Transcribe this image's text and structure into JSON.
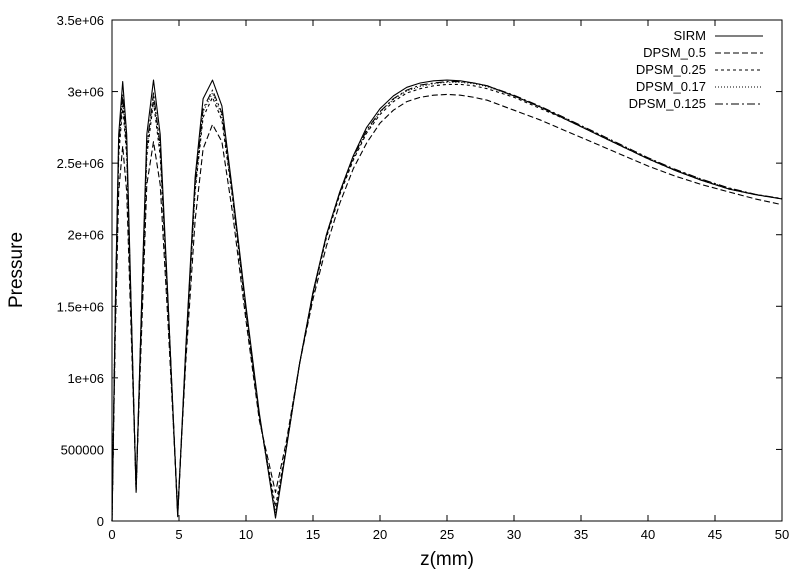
{
  "chart_data": {
    "type": "line",
    "title": "",
    "xlabel": "z(mm)",
    "ylabel": "Pressure",
    "xlim": [
      0,
      50
    ],
    "ylim": [
      0,
      3500000
    ],
    "xticks": [
      0,
      5,
      10,
      15,
      20,
      25,
      30,
      35,
      40,
      45,
      50
    ],
    "xtick_labels": [
      "0",
      "5",
      "10",
      "15",
      "20",
      "25",
      "30",
      "35",
      "40",
      "45",
      "50"
    ],
    "yticks": [
      0,
      500000,
      1000000,
      1500000,
      2000000,
      2500000,
      3000000,
      3500000
    ],
    "ytick_labels": [
      "0",
      "500000",
      "1e+06",
      "1.5e+06",
      "2e+06",
      "2.5e+06",
      "3e+06",
      "3.5e+06"
    ],
    "grid": false,
    "legend": "top-right",
    "series": [
      {
        "name": "SIRM",
        "dash": "",
        "color": "#000000",
        "points": [
          [
            0,
            0
          ],
          [
            0.25,
            1500000
          ],
          [
            0.5,
            2700000
          ],
          [
            0.8,
            3070000
          ],
          [
            1.1,
            2700000
          ],
          [
            1.4,
            1600000
          ],
          [
            1.8,
            200000
          ],
          [
            2.2,
            1500000
          ],
          [
            2.6,
            2700000
          ],
          [
            3.1,
            3080000
          ],
          [
            3.6,
            2700000
          ],
          [
            4.2,
            1500000
          ],
          [
            4.9,
            30000
          ],
          [
            5.5,
            1200000
          ],
          [
            6.2,
            2400000
          ],
          [
            6.8,
            2950000
          ],
          [
            7.5,
            3080000
          ],
          [
            8.2,
            2900000
          ],
          [
            9.0,
            2300000
          ],
          [
            10.0,
            1500000
          ],
          [
            11.0,
            750000
          ],
          [
            12.2,
            20000
          ],
          [
            13.0,
            500000
          ],
          [
            14.0,
            1100000
          ],
          [
            15.0,
            1600000
          ],
          [
            16.0,
            2000000
          ],
          [
            17.0,
            2300000
          ],
          [
            18.0,
            2550000
          ],
          [
            19.0,
            2750000
          ],
          [
            20.0,
            2880000
          ],
          [
            21.0,
            2970000
          ],
          [
            22.0,
            3030000
          ],
          [
            23.0,
            3060000
          ],
          [
            24.0,
            3075000
          ],
          [
            25.0,
            3080000
          ],
          [
            26.0,
            3075000
          ],
          [
            27.0,
            3060000
          ],
          [
            28.0,
            3040000
          ],
          [
            30.0,
            2970000
          ],
          [
            32.0,
            2890000
          ],
          [
            34.0,
            2800000
          ],
          [
            36.0,
            2710000
          ],
          [
            38.0,
            2620000
          ],
          [
            40.0,
            2530000
          ],
          [
            42.0,
            2450000
          ],
          [
            44.0,
            2380000
          ],
          [
            46.0,
            2320000
          ],
          [
            48.0,
            2280000
          ],
          [
            50.0,
            2250000
          ]
        ]
      },
      {
        "name": "DPSM_0.5",
        "dash": "6,3",
        "color": "#000000",
        "points": [
          [
            0,
            0
          ],
          [
            0.25,
            1300000
          ],
          [
            0.5,
            2300000
          ],
          [
            0.8,
            2620000
          ],
          [
            1.1,
            2300000
          ],
          [
            1.4,
            1400000
          ],
          [
            1.8,
            250000
          ],
          [
            2.2,
            1300000
          ],
          [
            2.6,
            2350000
          ],
          [
            3.1,
            2650000
          ],
          [
            3.6,
            2350000
          ],
          [
            4.2,
            1350000
          ],
          [
            4.9,
            80000
          ],
          [
            5.5,
            1100000
          ],
          [
            6.2,
            2100000
          ],
          [
            6.8,
            2600000
          ],
          [
            7.5,
            2770000
          ],
          [
            8.2,
            2650000
          ],
          [
            9.0,
            2150000
          ],
          [
            10.0,
            1400000
          ],
          [
            11.0,
            700000
          ],
          [
            12.2,
            200000
          ],
          [
            13.0,
            550000
          ],
          [
            14.0,
            1100000
          ],
          [
            15.0,
            1550000
          ],
          [
            16.0,
            1920000
          ],
          [
            17.0,
            2220000
          ],
          [
            18.0,
            2460000
          ],
          [
            19.0,
            2640000
          ],
          [
            20.0,
            2780000
          ],
          [
            21.0,
            2870000
          ],
          [
            22.0,
            2930000
          ],
          [
            23.0,
            2960000
          ],
          [
            24.0,
            2975000
          ],
          [
            25.0,
            2980000
          ],
          [
            26.0,
            2975000
          ],
          [
            27.0,
            2960000
          ],
          [
            28.0,
            2940000
          ],
          [
            30.0,
            2870000
          ],
          [
            32.0,
            2800000
          ],
          [
            34.0,
            2720000
          ],
          [
            36.0,
            2640000
          ],
          [
            38.0,
            2560000
          ],
          [
            40.0,
            2480000
          ],
          [
            42.0,
            2410000
          ],
          [
            44.0,
            2350000
          ],
          [
            46.0,
            2300000
          ],
          [
            48.0,
            2250000
          ],
          [
            50.0,
            2210000
          ]
        ]
      },
      {
        "name": "DPSM_0.25",
        "dash": "3,3",
        "color": "#000000",
        "points": [
          [
            0,
            0
          ],
          [
            0.25,
            1400000
          ],
          [
            0.5,
            2550000
          ],
          [
            0.8,
            2900000
          ],
          [
            1.1,
            2550000
          ],
          [
            1.4,
            1500000
          ],
          [
            1.8,
            220000
          ],
          [
            2.2,
            1400000
          ],
          [
            2.6,
            2550000
          ],
          [
            3.1,
            2930000
          ],
          [
            3.6,
            2550000
          ],
          [
            4.2,
            1450000
          ],
          [
            4.9,
            50000
          ],
          [
            5.5,
            1150000
          ],
          [
            6.2,
            2300000
          ],
          [
            6.8,
            2820000
          ],
          [
            7.5,
            2960000
          ],
          [
            8.2,
            2800000
          ],
          [
            9.0,
            2250000
          ],
          [
            10.0,
            1450000
          ],
          [
            11.0,
            720000
          ],
          [
            12.2,
            100000
          ],
          [
            13.0,
            520000
          ],
          [
            14.0,
            1100000
          ],
          [
            15.0,
            1580000
          ],
          [
            16.0,
            1980000
          ],
          [
            17.0,
            2280000
          ],
          [
            18.0,
            2520000
          ],
          [
            19.0,
            2710000
          ],
          [
            20.0,
            2840000
          ],
          [
            21.0,
            2930000
          ],
          [
            22.0,
            2990000
          ],
          [
            23.0,
            3020000
          ],
          [
            24.0,
            3040000
          ],
          [
            25.0,
            3050000
          ],
          [
            26.0,
            3050000
          ],
          [
            27.0,
            3040000
          ],
          [
            28.0,
            3020000
          ],
          [
            30.0,
            2960000
          ],
          [
            32.0,
            2880000
          ],
          [
            34.0,
            2800000
          ],
          [
            36.0,
            2710000
          ],
          [
            38.0,
            2620000
          ],
          [
            40.0,
            2530000
          ],
          [
            42.0,
            2450000
          ],
          [
            44.0,
            2380000
          ],
          [
            46.0,
            2320000
          ],
          [
            48.0,
            2280000
          ],
          [
            50.0,
            2250000
          ]
        ]
      },
      {
        "name": "DPSM_0.17",
        "dash": "1,2",
        "color": "#000000",
        "points": [
          [
            0,
            0
          ],
          [
            0.25,
            1450000
          ],
          [
            0.5,
            2600000
          ],
          [
            0.8,
            2950000
          ],
          [
            1.1,
            2600000
          ],
          [
            1.4,
            1550000
          ],
          [
            1.8,
            210000
          ],
          [
            2.2,
            1450000
          ],
          [
            2.6,
            2600000
          ],
          [
            3.1,
            2970000
          ],
          [
            3.6,
            2600000
          ],
          [
            4.2,
            1480000
          ],
          [
            4.9,
            40000
          ],
          [
            5.5,
            1170000
          ],
          [
            6.2,
            2330000
          ],
          [
            6.8,
            2860000
          ],
          [
            7.5,
            2990000
          ],
          [
            8.2,
            2830000
          ],
          [
            9.0,
            2270000
          ],
          [
            10.0,
            1470000
          ],
          [
            11.0,
            730000
          ],
          [
            12.2,
            60000
          ],
          [
            13.0,
            510000
          ],
          [
            14.0,
            1100000
          ],
          [
            15.0,
            1590000
          ],
          [
            16.0,
            1990000
          ],
          [
            17.0,
            2290000
          ],
          [
            18.0,
            2530000
          ],
          [
            19.0,
            2720000
          ],
          [
            20.0,
            2855000
          ],
          [
            21.0,
            2945000
          ],
          [
            22.0,
            3005000
          ],
          [
            23.0,
            3035000
          ],
          [
            24.0,
            3055000
          ],
          [
            25.0,
            3065000
          ],
          [
            26.0,
            3065000
          ],
          [
            27.0,
            3055000
          ],
          [
            28.0,
            3035000
          ],
          [
            30.0,
            2970000
          ],
          [
            32.0,
            2890000
          ],
          [
            34.0,
            2805000
          ],
          [
            36.0,
            2715000
          ],
          [
            38.0,
            2625000
          ],
          [
            40.0,
            2535000
          ],
          [
            42.0,
            2455000
          ],
          [
            44.0,
            2385000
          ],
          [
            46.0,
            2325000
          ],
          [
            48.0,
            2280000
          ],
          [
            50.0,
            2250000
          ]
        ]
      },
      {
        "name": "DPSM_0.125",
        "dash": "8,3,2,3",
        "color": "#000000",
        "points": [
          [
            0,
            0
          ],
          [
            0.25,
            1480000
          ],
          [
            0.5,
            2620000
          ],
          [
            0.8,
            2980000
          ],
          [
            1.1,
            2620000
          ],
          [
            1.4,
            1570000
          ],
          [
            1.8,
            205000
          ],
          [
            2.2,
            1470000
          ],
          [
            2.6,
            2620000
          ],
          [
            3.1,
            2990000
          ],
          [
            3.6,
            2620000
          ],
          [
            4.2,
            1490000
          ],
          [
            4.9,
            35000
          ],
          [
            5.5,
            1180000
          ],
          [
            6.2,
            2350000
          ],
          [
            6.8,
            2880000
          ],
          [
            7.5,
            3010000
          ],
          [
            8.2,
            2850000
          ],
          [
            9.0,
            2280000
          ],
          [
            10.0,
            1480000
          ],
          [
            11.0,
            735000
          ],
          [
            12.2,
            40000
          ],
          [
            13.0,
            505000
          ],
          [
            14.0,
            1100000
          ],
          [
            15.0,
            1595000
          ],
          [
            16.0,
            1995000
          ],
          [
            17.0,
            2295000
          ],
          [
            18.0,
            2540000
          ],
          [
            19.0,
            2730000
          ],
          [
            20.0,
            2860000
          ],
          [
            21.0,
            2950000
          ],
          [
            22.0,
            3010000
          ],
          [
            23.0,
            3045000
          ],
          [
            24.0,
            3060000
          ],
          [
            25.0,
            3070000
          ],
          [
            26.0,
            3070000
          ],
          [
            27.0,
            3060000
          ],
          [
            28.0,
            3040000
          ],
          [
            30.0,
            2975000
          ],
          [
            32.0,
            2895000
          ],
          [
            34.0,
            2808000
          ],
          [
            36.0,
            2718000
          ],
          [
            38.0,
            2628000
          ],
          [
            40.0,
            2538000
          ],
          [
            42.0,
            2458000
          ],
          [
            44.0,
            2388000
          ],
          [
            46.0,
            2328000
          ],
          [
            48.0,
            2282000
          ],
          [
            50.0,
            2252000
          ]
        ]
      }
    ]
  }
}
